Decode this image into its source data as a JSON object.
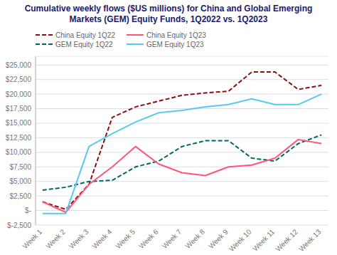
{
  "chart_data": {
    "type": "line",
    "title": "Cumulative weekly flows ($US millions) for China and Global Emerging Markets (GEM) Equity Funds, 1Q2022 vs. 1Q2023",
    "categories": [
      "Week 1",
      "Week 2",
      "Week 3",
      "Week 4",
      "Week 5",
      "Week 6",
      "Week 7",
      "Week 8",
      "Week 9",
      "Week 10",
      "Week 11",
      "Week 12",
      "Week 13"
    ],
    "series": [
      {
        "name": "China Equity 1Q22",
        "color": "#8B1010",
        "line_style": "dashed",
        "values": [
          1500,
          200,
          4500,
          16000,
          17800,
          18800,
          19800,
          20200,
          20500,
          23800,
          23800,
          20800,
          21500
        ]
      },
      {
        "name": "GEM Equity 1Q22",
        "color": "#006666",
        "line_style": "dashed",
        "values": [
          3500,
          4000,
          5000,
          5200,
          7500,
          8500,
          11000,
          12000,
          12000,
          9000,
          8500,
          11500,
          13000
        ]
      },
      {
        "name": "China Equity 1Q23",
        "color": "#FF5577",
        "line_style": "solid",
        "values": [
          1500,
          -300,
          4500,
          7500,
          11000,
          8000,
          6500,
          6000,
          7500,
          7800,
          9000,
          12200,
          11500
        ]
      },
      {
        "name": "GEM Equity 1Q23",
        "color": "#55CCEE",
        "line_style": "solid",
        "values": [
          -500,
          -500,
          11000,
          13200,
          15200,
          16800,
          17200,
          17800,
          18200,
          19200,
          18200,
          18200,
          20000
        ]
      }
    ],
    "ylim": [
      -2500,
      26500
    ],
    "yticks": [
      {
        "value": -2500,
        "label": "$-2,500"
      },
      {
        "value": 0,
        "label": "$-"
      },
      {
        "value": 2500,
        "label": "$2,500"
      },
      {
        "value": 5000,
        "label": "$5,000"
      },
      {
        "value": 7500,
        "label": "$7,500"
      },
      {
        "value": 10000,
        "label": "$10,000"
      },
      {
        "value": 12500,
        "label": "$12,500"
      },
      {
        "value": 15000,
        "label": "$15,000"
      },
      {
        "value": 17500,
        "label": "$17,500"
      },
      {
        "value": 20000,
        "label": "$20,000"
      },
      {
        "value": 22500,
        "label": "$22,500"
      },
      {
        "value": 25000,
        "label": "$25,000"
      }
    ],
    "grid": true,
    "legend": "upper left"
  }
}
